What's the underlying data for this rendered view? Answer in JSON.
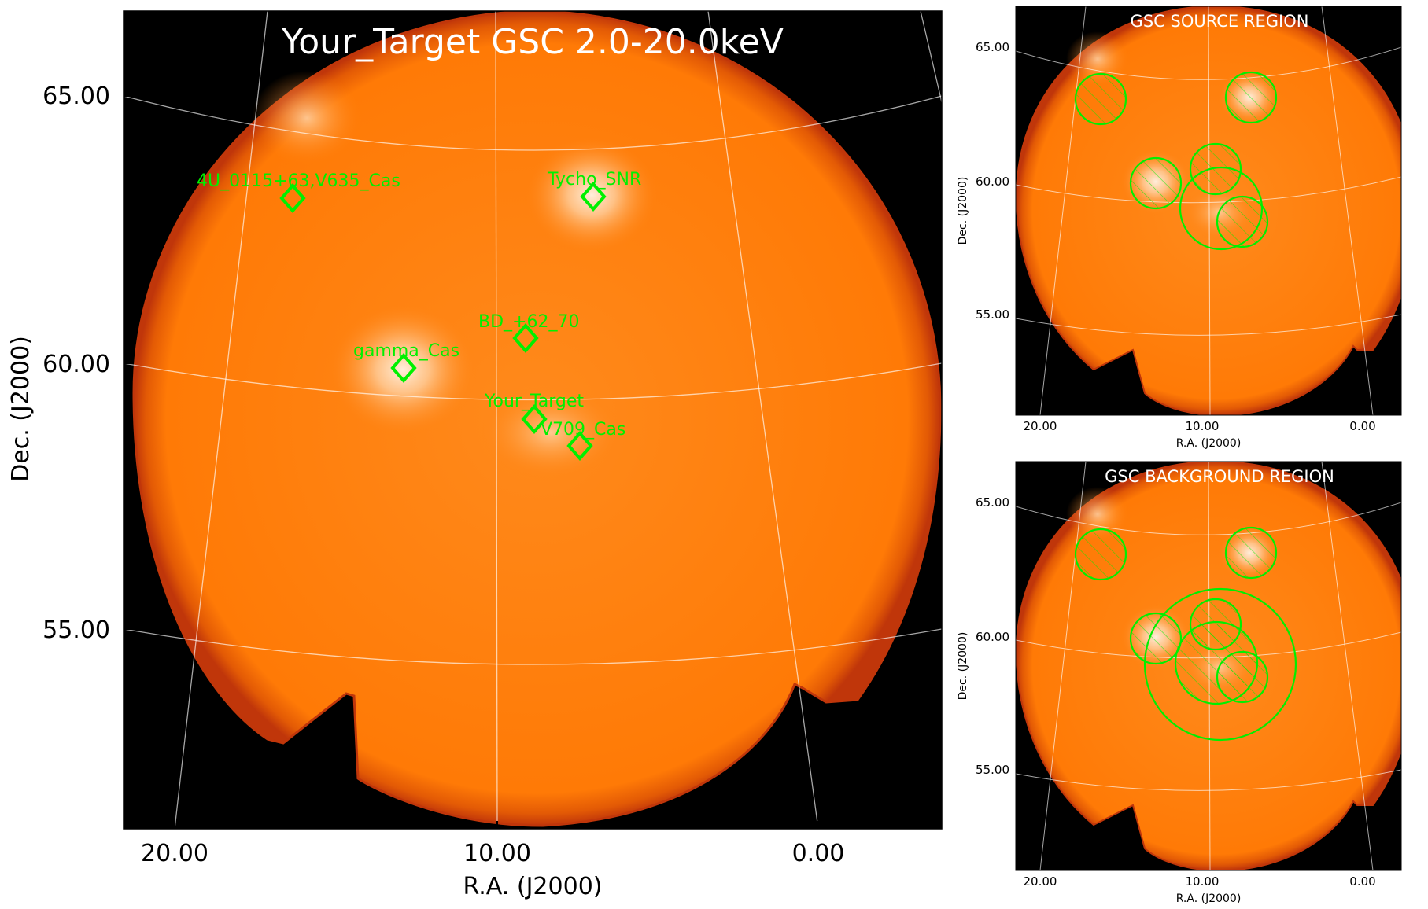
{
  "colors": {
    "image_fill": "#ff7f0a",
    "background": "#000000",
    "region": "#00f000",
    "grid": "#ffffff",
    "hotspot": "#fff4e6"
  },
  "main_panel": {
    "title": "Your_Target GSC 2.0-20.0keV",
    "xlabel": "R.A. (J2000)",
    "ylabel": "Dec. (J2000)",
    "xticks": [
      "20.00",
      "10.00",
      "0.00"
    ],
    "yticks": [
      "65.00",
      "60.00",
      "55.00"
    ]
  },
  "source_panel": {
    "title": "GSC SOURCE REGION",
    "xlabel": "R.A. (J2000)",
    "ylabel": "Dec. (J2000)",
    "xticks": [
      "20.00",
      "10.00",
      "0.00"
    ],
    "yticks": [
      "65.00",
      "60.00",
      "55.00"
    ]
  },
  "background_panel": {
    "title": "GSC BACKGROUND REGION",
    "xlabel": "R.A. (J2000)",
    "ylabel": "Dec. (J2000)",
    "xticks": [
      "20.00",
      "10.00",
      "0.00"
    ],
    "yticks": [
      "65.00",
      "60.00",
      "55.00"
    ]
  },
  "chart_data": [
    {
      "type": "image",
      "title": "Your_Target GSC 2.0-20.0keV",
      "xlabel": "R.A. (J2000)",
      "ylabel": "Dec. (J2000)",
      "x_ticks": [
        20.0,
        10.0,
        0.0
      ],
      "y_ticks": [
        65.0,
        60.0,
        55.0
      ],
      "grid": true,
      "sources": [
        {
          "name": "4U_0115+63,V635_Cas",
          "ra": 19.0,
          "dec": 63.7
        },
        {
          "name": "Tycho_SNR",
          "ra": 6.3,
          "dec": 64.1
        },
        {
          "name": "BD_+62_70",
          "ra": 9.0,
          "dec": 61.2
        },
        {
          "name": "gamma_Cas",
          "ra": 14.2,
          "dec": 60.7
        },
        {
          "name": "Your_Target",
          "ra": 8.8,
          "dec": 59.6
        },
        {
          "name": "V709_Cas",
          "ra": 7.0,
          "dec": 59.1
        }
      ]
    },
    {
      "type": "image",
      "title": "GSC SOURCE REGION",
      "xlabel": "R.A. (J2000)",
      "ylabel": "Dec. (J2000)",
      "x_ticks": [
        20.0,
        10.0,
        0.0
      ],
      "y_ticks": [
        65.0,
        60.0,
        55.0
      ],
      "grid": true,
      "source_region": {
        "ra": 8.6,
        "dec": 59.6,
        "radius_deg": 1.5
      },
      "excluded_regions": [
        {
          "ra": 19.0,
          "dec": 63.7,
          "radius_deg": 1.0
        },
        {
          "ra": 6.3,
          "dec": 64.1,
          "radius_deg": 1.0
        },
        {
          "ra": 9.0,
          "dec": 61.2,
          "radius_deg": 1.0
        },
        {
          "ra": 14.2,
          "dec": 60.7,
          "radius_deg": 1.0
        },
        {
          "ra": 7.0,
          "dec": 59.1,
          "radius_deg": 1.0
        }
      ]
    },
    {
      "type": "image",
      "title": "GSC BACKGROUND REGION",
      "xlabel": "R.A. (J2000)",
      "ylabel": "Dec. (J2000)",
      "x_ticks": [
        20.0,
        10.0,
        0.0
      ],
      "y_ticks": [
        65.0,
        60.0,
        55.0
      ],
      "grid": true,
      "background_region": {
        "ra": 8.6,
        "dec": 59.6,
        "inner_radius_deg": 1.7,
        "outer_radius_deg": 3.0
      },
      "excluded_regions": [
        {
          "ra": 19.0,
          "dec": 63.7,
          "radius_deg": 1.0
        },
        {
          "ra": 6.3,
          "dec": 64.1,
          "radius_deg": 1.0
        },
        {
          "ra": 9.0,
          "dec": 61.2,
          "radius_deg": 1.0
        },
        {
          "ra": 14.2,
          "dec": 60.7,
          "radius_deg": 1.0
        },
        {
          "ra": 7.0,
          "dec": 59.1,
          "radius_deg": 1.0
        }
      ]
    }
  ]
}
